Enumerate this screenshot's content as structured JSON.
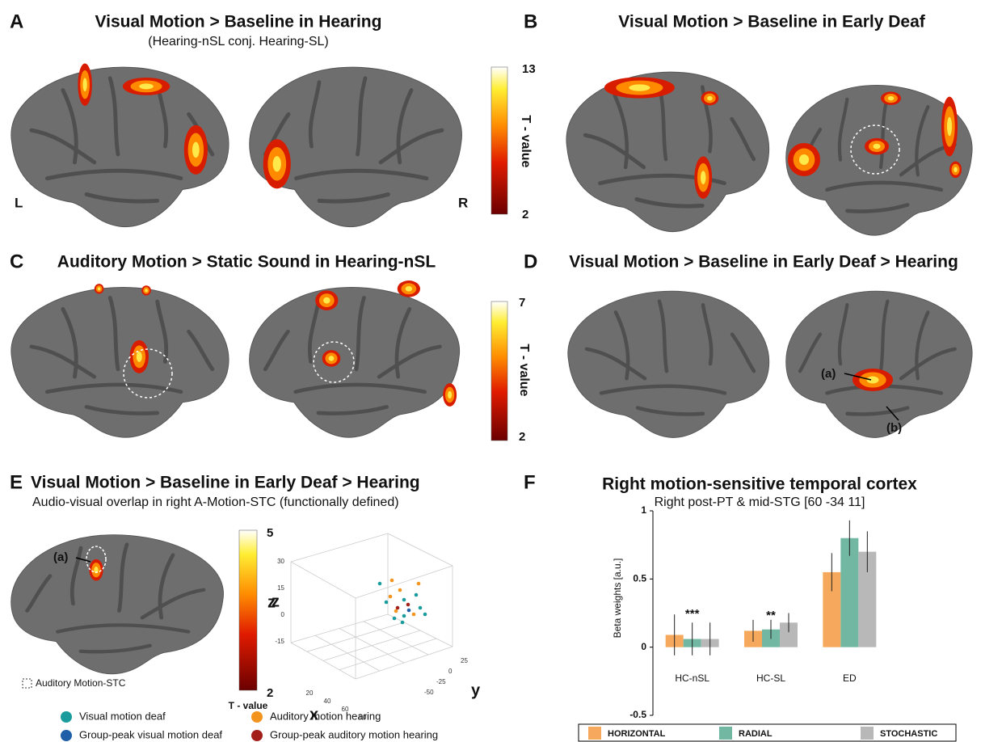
{
  "panel_a": {
    "letter": "A",
    "title": "Visual Motion > Baseline in Hearing",
    "subtitle": "(Hearing-nSL conj. Hearing-SL)",
    "left": "L",
    "right": "R"
  },
  "colorbar_a": {
    "max": 13,
    "min": 2,
    "label": "T - value"
  },
  "panel_b": {
    "letter": "B",
    "title": "Visual Motion > Baseline in Early Deaf"
  },
  "panel_c": {
    "letter": "C",
    "title": "Auditory Motion > Static Sound in Hearing-nSL"
  },
  "colorbar_c": {
    "max": 7,
    "min": 2,
    "label": "T - value"
  },
  "panel_d": {
    "letter": "D",
    "title": "Visual Motion > Baseline in Early Deaf > Hearing",
    "annotations": [
      "(a)",
      "(b)"
    ]
  },
  "panel_e": {
    "letter": "E",
    "title": "Visual Motion > Baseline in Early Deaf > Hearing",
    "subtitle": "Audio-visual overlap in right A-Motion-STC (functionally defined)",
    "annotation": "(a)",
    "outline_legend": "Auditory Motion-STC"
  },
  "colorbar_e": {
    "max": 5,
    "min": 2,
    "label": "z",
    "sublabel": "T - value"
  },
  "scatter": {
    "x_label": "x",
    "y_label": "y",
    "z_label": "z",
    "xticks": [
      20,
      40,
      60,
      80
    ],
    "yticks": [
      25,
      0,
      -25,
      -50
    ],
    "zticks": [
      30,
      15,
      0,
      -15
    ]
  },
  "scatter_legend": [
    {
      "name": "Visual motion deaf",
      "color": "#1a9c9c"
    },
    {
      "name": "Group-peak visual motion deaf",
      "color": "#1f5fa8"
    },
    {
      "name": "Auditory motion hearing",
      "color": "#f3941e"
    },
    {
      "name": "Group-peak auditory motion hearing",
      "color": "#a3201a"
    }
  ],
  "chart_data": {
    "type": "bar",
    "letter": "F",
    "title": "Right motion-sensitive temporal cortex",
    "subtitle": "Right post-PT & mid-STG [60 -34 11]",
    "y_label": "Beta weights [a.u.]",
    "categories": [
      "HC-nSL",
      "HC-SL",
      "ED"
    ],
    "series": [
      {
        "name": "HORIZONTAL",
        "color": "#f6a95c",
        "values": [
          0.09,
          0.12,
          0.55
        ],
        "errors": [
          0.15,
          0.08,
          0.14
        ]
      },
      {
        "name": "RADIAL",
        "color": "#72b7a2",
        "values": [
          0.06,
          0.13,
          0.8
        ],
        "errors": [
          0.12,
          0.07,
          0.13
        ]
      },
      {
        "name": "STOCHASTIC",
        "color": "#b8b8b8",
        "values": [
          0.06,
          0.18,
          0.7
        ],
        "errors": [
          0.12,
          0.07,
          0.15
        ]
      }
    ],
    "annotations": [
      "***",
      "**"
    ],
    "ylim": [
      -0.5,
      1
    ],
    "yticks": [
      -0.5,
      0,
      0.5,
      1
    ]
  }
}
